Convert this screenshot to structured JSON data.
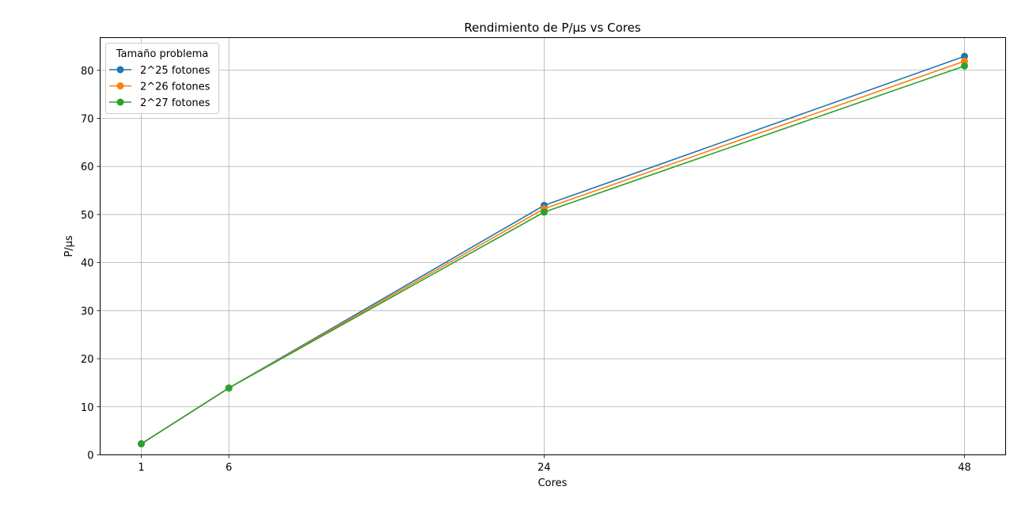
{
  "chart_data": {
    "type": "line",
    "title": "Rendimiento de P/µs vs Cores",
    "xlabel": "Cores",
    "ylabel": "P/µs",
    "x": [
      1,
      6,
      24,
      48
    ],
    "xticks": [
      "1",
      "6",
      "24",
      "48"
    ],
    "xlim": [
      -1.35,
      50.35
    ],
    "ylim": [
      0,
      86.8
    ],
    "yticks": [
      "0",
      "10",
      "20",
      "30",
      "40",
      "50",
      "60",
      "70",
      "80"
    ],
    "grid": true,
    "legend": {
      "title": "Tamaño problema",
      "placement": "top-left"
    },
    "series": [
      {
        "name": "2^25 fotones",
        "color": "#1f77b4",
        "values": [
          2.3,
          13.9,
          51.9,
          82.9
        ]
      },
      {
        "name": "2^26 fotones",
        "color": "#ff7f0e",
        "values": [
          2.3,
          13.9,
          51.2,
          81.9
        ]
      },
      {
        "name": "2^27 fotones",
        "color": "#2ca02c",
        "values": [
          2.3,
          13.9,
          50.5,
          80.9
        ]
      }
    ]
  }
}
